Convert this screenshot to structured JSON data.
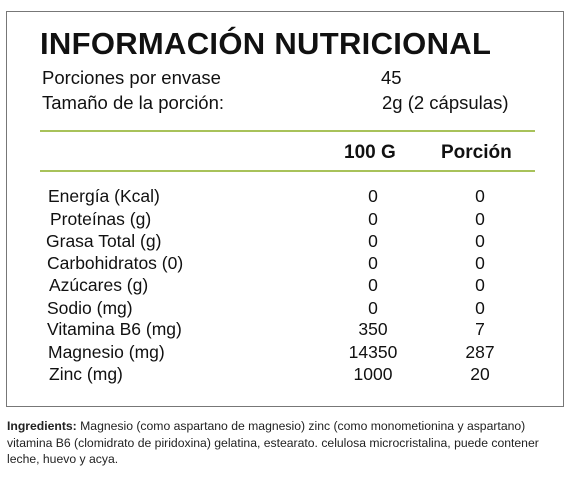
{
  "title": "INFORMACIÓN NUTRICIONAL",
  "servings": {
    "per_container_label": "Porciones por envase",
    "per_container_value": "45",
    "size_label": "Tamaño de la porción:",
    "size_value": "2g (2 cápsulas)"
  },
  "columns": {
    "per100": "100 G",
    "portion": "Porción"
  },
  "nutrients": [
    {
      "name": "Energía (Kcal)",
      "per100": "0",
      "portion": "0"
    },
    {
      "name": "Proteínas (g)",
      "per100": "0",
      "portion": "0"
    },
    {
      "name": "Grasa Total (g)",
      "per100": "0",
      "portion": "0"
    },
    {
      "name": "Carbohidratos (0)",
      "per100": "0",
      "portion": "0"
    },
    {
      "name": "Azúcares (g)",
      "per100": "0",
      "portion": "0"
    },
    {
      "name": "Sodio (mg)",
      "per100": "0",
      "portion": "0"
    },
    {
      "name": "Vitamina B6 (mg)",
      "per100": "350",
      "portion": "7"
    },
    {
      "name": "Magnesio (mg)",
      "per100": "14350",
      "portion": "287"
    },
    {
      "name": "Zinc (mg)",
      "per100": "1000",
      "portion": "20"
    }
  ],
  "ingredients": {
    "label": "Ingredients:",
    "text": " Magnesio (como aspartano de magnesio) zinc (como monometionina y aspartano) vitamina B6 (clomidrato de piridoxina) gelatina, estearato. celulosa microcristalina, puede contener leche, huevo y acya."
  },
  "colors": {
    "rule": "#a8c25a",
    "border": "#777777"
  }
}
